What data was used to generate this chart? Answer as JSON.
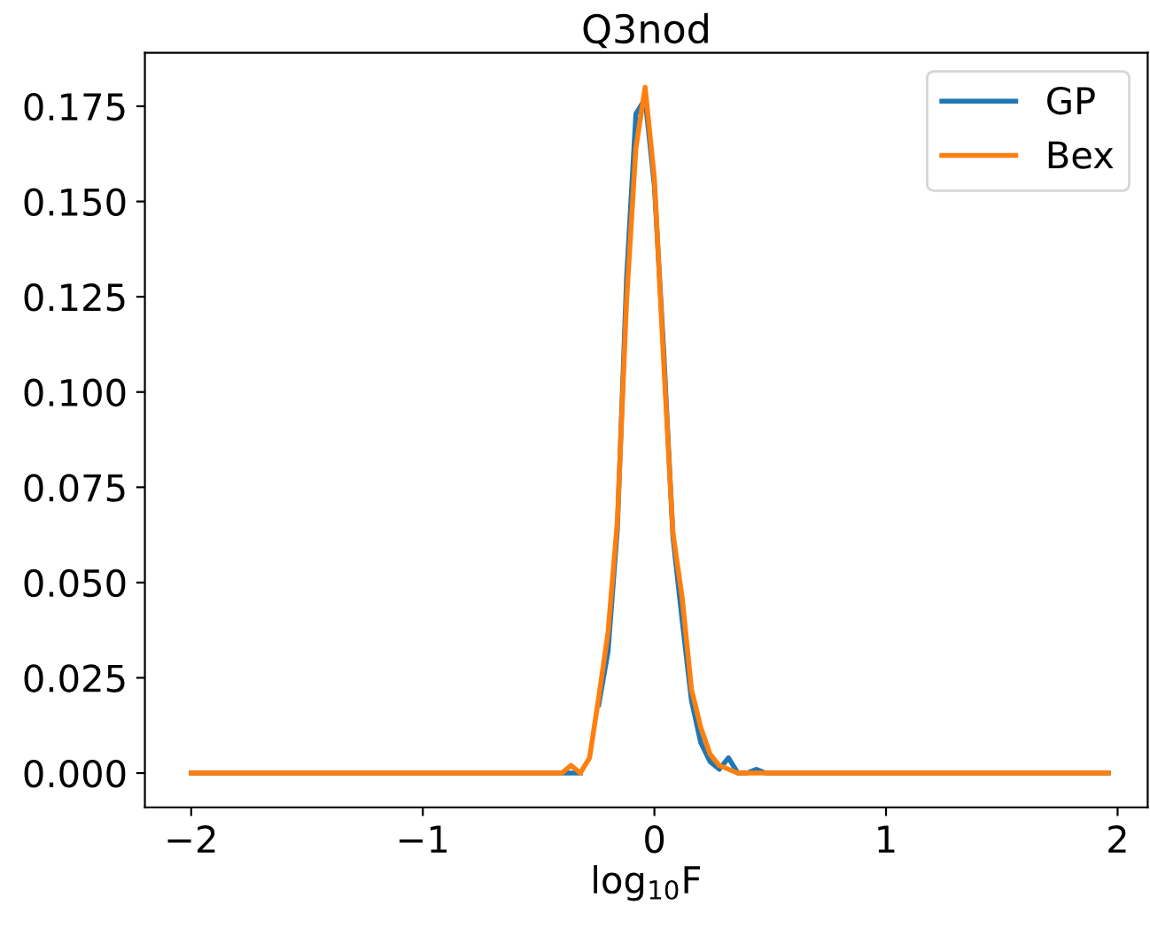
{
  "chart_data": {
    "type": "line",
    "title": "Q3nod",
    "xlabel": "log$_{10}$F",
    "x": [
      -2,
      -0.44,
      -0.4,
      -0.36,
      -0.32,
      -0.28,
      -0.24,
      -0.2,
      -0.16,
      -0.12,
      -0.08,
      -0.04,
      0,
      0.04,
      0.08,
      0.12,
      0.16,
      0.2,
      0.24,
      0.28,
      0.32,
      0.36,
      0.4,
      0.44,
      0.48,
      1.96
    ],
    "series": [
      {
        "name": "GP",
        "color": "#1f77b4",
        "values": [
          0,
          0,
          0,
          0,
          0,
          null,
          0.018,
          0.032,
          0.064,
          0.13,
          0.173,
          0.177,
          0.154,
          0.111,
          0.062,
          0.04,
          0.019,
          0.008,
          0.003,
          0.001,
          0.004,
          0,
          0,
          0.001,
          0,
          0
        ]
      },
      {
        "name": "Bex",
        "color": "#ff7f0e",
        "values": [
          0,
          0,
          0,
          0.002,
          0,
          0.004,
          0.02,
          0.037,
          0.066,
          0.124,
          0.164,
          0.18,
          0.156,
          0.108,
          0.063,
          0.046,
          0.022,
          0.012,
          0.005,
          0.002,
          0.001,
          0,
          0,
          0,
          0,
          0
        ]
      }
    ],
    "xlim": [
      -2.2,
      2.13
    ],
    "ylim": [
      -0.009,
      0.189
    ],
    "xticks": [
      {
        "value": -2,
        "label": "−2"
      },
      {
        "value": -1,
        "label": "−1"
      },
      0,
      1,
      2
    ],
    "yticks": [
      {
        "value": 0,
        "label": "0.000"
      },
      0.025,
      {
        "value": 0.05,
        "label": "0.050"
      },
      0.075,
      {
        "value": 0.1,
        "label": "0.100"
      },
      0.125,
      {
        "value": 0.15,
        "label": "0.150"
      },
      0.175
    ],
    "legend": "top right",
    "grid": false,
    "marker": "none",
    "line_style": "solid"
  }
}
